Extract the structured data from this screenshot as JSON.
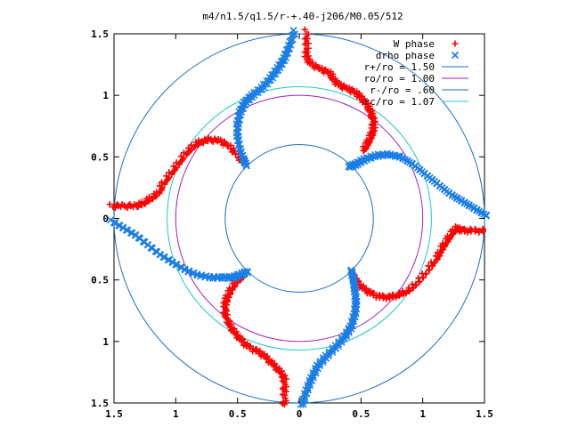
{
  "chart_data": {
    "type": "scatter",
    "title": "m4/n1.5/q1.5/r-+.40-j206/M0.05/512",
    "xlabel": "",
    "ylabel": "",
    "xlim": [
      -1.5,
      1.5
    ],
    "ylim": [
      -1.5,
      1.5
    ],
    "grid": false,
    "legend_position": "top-right",
    "x_ticks": [
      {
        "value": -1.5,
        "label": "1.5"
      },
      {
        "value": -1.0,
        "label": "1"
      },
      {
        "value": -0.5,
        "label": "0.5"
      },
      {
        "value": 0.0,
        "label": "0"
      },
      {
        "value": 0.5,
        "label": "0.5"
      },
      {
        "value": 1.0,
        "label": "1"
      },
      {
        "value": 1.5,
        "label": "1.5"
      }
    ],
    "y_ticks": [
      {
        "value": 1.5,
        "label": "1.5"
      },
      {
        "value": 1.0,
        "label": "1"
      },
      {
        "value": 0.5,
        "label": "0.5"
      },
      {
        "value": 0.0,
        "label": "0"
      },
      {
        "value": -0.5,
        "label": "0.5"
      },
      {
        "value": -1.0,
        "label": "1"
      },
      {
        "value": -1.5,
        "label": "1.5"
      }
    ],
    "series": [
      {
        "name": "W phase",
        "marker": "+",
        "color": "#ff0000",
        "arms": [
          [
            [
              0.06,
              1.52
            ],
            [
              0.06,
              1.4
            ],
            [
              0.06,
              1.3
            ],
            [
              0.1,
              1.25
            ],
            [
              0.18,
              1.21
            ],
            [
              0.25,
              1.18
            ],
            [
              0.28,
              1.12
            ],
            [
              0.33,
              1.08
            ],
            [
              0.4,
              1.05
            ],
            [
              0.46,
              1.02
            ],
            [
              0.5,
              0.98
            ],
            [
              0.55,
              0.92
            ],
            [
              0.58,
              0.86
            ],
            [
              0.6,
              0.8
            ],
            [
              0.6,
              0.72
            ],
            [
              0.58,
              0.66
            ],
            [
              0.55,
              0.6
            ],
            [
              0.52,
              0.55
            ]
          ],
          [
            [
              1.5,
              -0.1
            ],
            [
              1.4,
              -0.1
            ],
            [
              1.32,
              -0.1
            ],
            [
              1.28,
              -0.08
            ],
            [
              1.24,
              -0.12
            ],
            [
              1.2,
              -0.18
            ],
            [
              1.16,
              -0.24
            ],
            [
              1.12,
              -0.32
            ],
            [
              1.06,
              -0.4
            ],
            [
              0.98,
              -0.5
            ],
            [
              0.9,
              -0.58
            ],
            [
              0.82,
              -0.62
            ],
            [
              0.74,
              -0.64
            ],
            [
              0.66,
              -0.64
            ],
            [
              0.58,
              -0.61
            ],
            [
              0.52,
              -0.57
            ],
            [
              0.46,
              -0.51
            ],
            [
              0.43,
              -0.46
            ]
          ],
          [
            [
              -0.12,
              -1.52
            ],
            [
              -0.12,
              -1.4
            ],
            [
              -0.12,
              -1.3
            ],
            [
              -0.16,
              -1.24
            ],
            [
              -0.22,
              -1.18
            ],
            [
              -0.28,
              -1.12
            ],
            [
              -0.34,
              -1.08
            ],
            [
              -0.42,
              -1.04
            ],
            [
              -0.48,
              -0.98
            ],
            [
              -0.53,
              -0.92
            ],
            [
              -0.57,
              -0.86
            ],
            [
              -0.6,
              -0.78
            ],
            [
              -0.6,
              -0.7
            ],
            [
              -0.58,
              -0.64
            ],
            [
              -0.55,
              -0.58
            ],
            [
              -0.51,
              -0.52
            ],
            [
              -0.46,
              -0.48
            ]
          ],
          [
            [
              -1.52,
              0.1
            ],
            [
              -1.42,
              0.1
            ],
            [
              -1.32,
              0.1
            ],
            [
              -1.26,
              0.12
            ],
            [
              -1.2,
              0.16
            ],
            [
              -1.14,
              0.2
            ],
            [
              -1.1,
              0.28
            ],
            [
              -1.04,
              0.36
            ],
            [
              -0.98,
              0.44
            ],
            [
              -0.92,
              0.52
            ],
            [
              -0.86,
              0.58
            ],
            [
              -0.8,
              0.62
            ],
            [
              -0.72,
              0.64
            ],
            [
              -0.64,
              0.63
            ],
            [
              -0.56,
              0.58
            ],
            [
              -0.5,
              0.51
            ],
            [
              -0.45,
              0.45
            ]
          ]
        ]
      },
      {
        "name": "drho phase",
        "marker": "x",
        "color": "#1a7ee6",
        "arms": [
          [
            [
              -0.04,
              1.52
            ],
            [
              -0.08,
              1.4
            ],
            [
              -0.12,
              1.3
            ],
            [
              -0.17,
              1.22
            ],
            [
              -0.23,
              1.14
            ],
            [
              -0.3,
              1.06
            ],
            [
              -0.38,
              1.0
            ],
            [
              -0.44,
              0.94
            ],
            [
              -0.48,
              0.86
            ],
            [
              -0.5,
              0.76
            ],
            [
              -0.5,
              0.66
            ],
            [
              -0.48,
              0.56
            ],
            [
              -0.45,
              0.48
            ],
            [
              -0.43,
              0.43
            ]
          ],
          [
            [
              1.52,
              0.02
            ],
            [
              1.42,
              0.08
            ],
            [
              1.32,
              0.14
            ],
            [
              1.22,
              0.2
            ],
            [
              1.12,
              0.28
            ],
            [
              1.02,
              0.36
            ],
            [
              0.92,
              0.44
            ],
            [
              0.82,
              0.5
            ],
            [
              0.72,
              0.52
            ],
            [
              0.62,
              0.51
            ],
            [
              0.53,
              0.48
            ],
            [
              0.46,
              0.44
            ],
            [
              0.4,
              0.42
            ]
          ],
          [
            [
              0.02,
              -1.52
            ],
            [
              0.06,
              -1.4
            ],
            [
              0.1,
              -1.3
            ],
            [
              0.15,
              -1.2
            ],
            [
              0.22,
              -1.12
            ],
            [
              0.3,
              -1.04
            ],
            [
              0.37,
              -0.96
            ],
            [
              0.42,
              -0.88
            ],
            [
              0.45,
              -0.78
            ],
            [
              0.46,
              -0.68
            ],
            [
              0.45,
              -0.58
            ],
            [
              0.44,
              -0.5
            ],
            [
              0.42,
              -0.42
            ]
          ],
          [
            [
              -1.52,
              -0.02
            ],
            [
              -1.42,
              -0.08
            ],
            [
              -1.32,
              -0.14
            ],
            [
              -1.22,
              -0.22
            ],
            [
              -1.12,
              -0.3
            ],
            [
              -1.02,
              -0.36
            ],
            [
              -0.92,
              -0.42
            ],
            [
              -0.82,
              -0.46
            ],
            [
              -0.72,
              -0.48
            ],
            [
              -0.62,
              -0.48
            ],
            [
              -0.54,
              -0.48
            ],
            [
              -0.48,
              -0.46
            ],
            [
              -0.42,
              -0.43
            ]
          ]
        ]
      },
      {
        "name": "r+/ro = 1.50",
        "type": "circle",
        "r": 1.5,
        "color": "#1a6ec8"
      },
      {
        "name": "ro/ro = 1.00",
        "type": "circle",
        "r": 1.0,
        "color": "#a020c0"
      },
      {
        "name": "r-/ro = .60",
        "type": "circle",
        "r": 0.6,
        "color": "#1a6ec8"
      },
      {
        "name": "rc/ro = 1.07",
        "type": "circle",
        "r": 1.07,
        "color": "#20c8c8"
      }
    ]
  }
}
